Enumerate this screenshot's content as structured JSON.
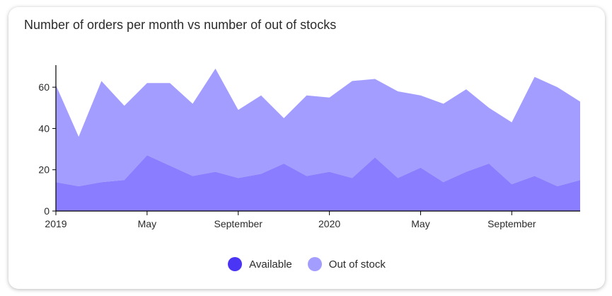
{
  "title": "Number of orders per month vs number of out of stocks",
  "chart_data": {
    "type": "area",
    "stacked": true,
    "x": [
      "2019-01",
      "2019-02",
      "2019-03",
      "2019-04",
      "2019-05",
      "2019-06",
      "2019-07",
      "2019-08",
      "2019-09",
      "2019-10",
      "2019-11",
      "2019-12",
      "2020-01",
      "2020-02",
      "2020-03",
      "2020-04",
      "2020-05",
      "2020-06",
      "2020-07",
      "2020-08",
      "2020-09",
      "2020-10",
      "2020-11",
      "2020-12"
    ],
    "series": [
      {
        "name": "Available",
        "color": "#8a7dff",
        "values": [
          14,
          12,
          14,
          15,
          27,
          22,
          17,
          19,
          16,
          18,
          23,
          17,
          19,
          16,
          26,
          16,
          21,
          14,
          19,
          23,
          13,
          17,
          12,
          15
        ]
      },
      {
        "name": "Out of stock",
        "color": "#a39dff",
        "values": [
          47,
          24,
          49,
          36,
          35,
          40,
          35,
          50,
          33,
          38,
          22,
          39,
          36,
          47,
          38,
          42,
          35,
          38,
          40,
          27,
          30,
          48,
          48,
          38
        ]
      }
    ],
    "ylim": [
      0,
      70
    ],
    "yticks": [
      "0",
      "20",
      "40",
      "60"
    ],
    "xtick_labels": [
      {
        "label": "2019",
        "x": "2019-01"
      },
      {
        "label": "May",
        "x": "2019-05"
      },
      {
        "label": "September",
        "x": "2019-09"
      },
      {
        "label": "2020",
        "x": "2020-01"
      },
      {
        "label": "May",
        "x": "2020-05"
      },
      {
        "label": "September",
        "x": "2020-09"
      }
    ],
    "grid": false,
    "legend_position": "bottom-center"
  },
  "legend": [
    {
      "label": "Available",
      "color": "#4a35f5"
    },
    {
      "label": "Out of stock",
      "color": "#a39dff"
    }
  ]
}
